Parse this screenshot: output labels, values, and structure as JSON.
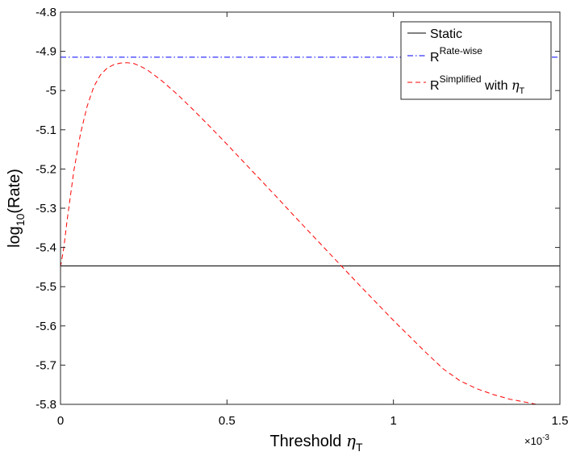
{
  "chart_data": {
    "type": "line",
    "title": "",
    "xlabel": {
      "text": "Threshold ",
      "symbol": "η",
      "subscript": "T"
    },
    "ylabel": {
      "prefix": "log",
      "subscript": "10",
      "suffix": "(Rate)"
    },
    "x_exponent_label": {
      "base": "×10",
      "exponent": "-3"
    },
    "xlim": [
      0,
      1.5
    ],
    "ylim": [
      -5.8,
      -4.8
    ],
    "x_ticks": [
      0,
      0.5,
      1,
      1.5
    ],
    "x_tick_labels": [
      "0",
      "0.5",
      "1",
      "1.5"
    ],
    "y_ticks": [
      -4.8,
      -4.9,
      -5.0,
      -5.1,
      -5.2,
      -5.3,
      -5.4,
      -5.5,
      -5.6,
      -5.7,
      -5.8
    ],
    "y_tick_labels": [
      "-4.8",
      "-4.9",
      "-5",
      "-5.1",
      "-5.2",
      "-5.3",
      "-5.4",
      "-5.5",
      "-5.6",
      "-5.7",
      "-5.8"
    ],
    "grid": false,
    "legend_position": "top-right",
    "series": [
      {
        "name": "Static",
        "color": "#000000",
        "dash": "solid",
        "x": [
          0,
          1.5
        ],
        "y": [
          -5.447,
          -5.447
        ]
      },
      {
        "name": {
          "base": "R",
          "sup": "Rate-wise"
        },
        "color": "#0000ff",
        "dash": "dashdot",
        "x": [
          0,
          1.5
        ],
        "y": [
          -4.915,
          -4.915
        ]
      },
      {
        "name": {
          "base": "R",
          "sup": "Simplified",
          "suffix": " with ",
          "symbol": "η",
          "sub": "T"
        },
        "color": "#ff0000",
        "dash": "dashed",
        "x": [
          0,
          0.01,
          0.02,
          0.04,
          0.06,
          0.08,
          0.1,
          0.12,
          0.14,
          0.16,
          0.18,
          0.2,
          0.22,
          0.24,
          0.26,
          0.3,
          0.35,
          0.4,
          0.45,
          0.5,
          0.55,
          0.6,
          0.65,
          0.7,
          0.75,
          0.8,
          0.85,
          0.9,
          0.95,
          1.0,
          1.05,
          1.1,
          1.15,
          1.2,
          1.25,
          1.3,
          1.35,
          1.4,
          1.43
        ],
        "y": [
          -5.45,
          -5.4,
          -5.33,
          -5.205,
          -5.11,
          -5.04,
          -4.99,
          -4.96,
          -4.943,
          -4.934,
          -4.93,
          -4.929,
          -4.931,
          -4.938,
          -4.947,
          -4.972,
          -5.009,
          -5.05,
          -5.093,
          -5.137,
          -5.182,
          -5.227,
          -5.272,
          -5.318,
          -5.363,
          -5.408,
          -5.453,
          -5.498,
          -5.542,
          -5.586,
          -5.628,
          -5.67,
          -5.71,
          -5.74,
          -5.76,
          -5.775,
          -5.787,
          -5.795,
          -5.8
        ]
      }
    ]
  }
}
